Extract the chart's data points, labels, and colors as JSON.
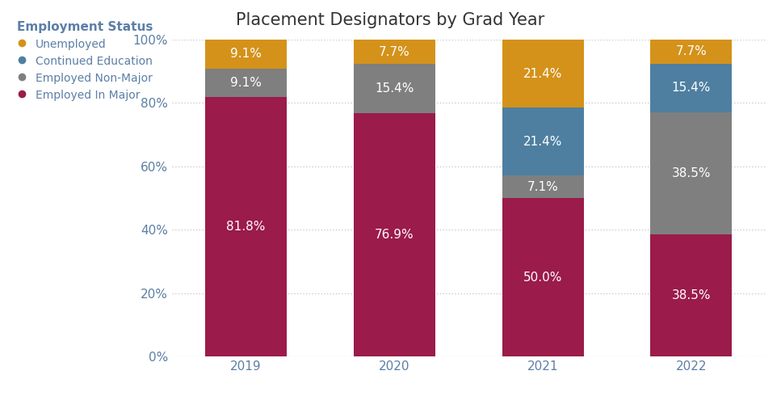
{
  "title": "Placement Designators by Grad Year",
  "years": [
    "2019",
    "2020",
    "2021",
    "2022"
  ],
  "categories": [
    "Employed In Major",
    "Employed Non-Major",
    "Continued Education",
    "Unemployed"
  ],
  "legend_title": "Employment Status",
  "colors": {
    "Employed In Major": "#9B1B4A",
    "Employed Non-Major": "#7F7F7F",
    "Continued Education": "#4E7FA0",
    "Unemployed": "#D4921A"
  },
  "data": {
    "Employed In Major": [
      81.8,
      76.9,
      50.0,
      38.5
    ],
    "Employed Non-Major": [
      9.1,
      15.4,
      7.1,
      38.5
    ],
    "Continued Education": [
      0.0,
      0.0,
      21.4,
      15.4
    ],
    "Unemployed": [
      9.1,
      7.7,
      21.4,
      7.7
    ]
  },
  "labels": {
    "Employed In Major": [
      "81.8%",
      "76.9%",
      "50.0%",
      "38.5%"
    ],
    "Employed Non-Major": [
      "9.1%",
      "15.4%",
      "7.1%",
      "38.5%"
    ],
    "Continued Education": [
      "",
      "",
      "21.4%",
      "15.4%"
    ],
    "Unemployed": [
      "9.1%",
      "7.7%",
      "21.4%",
      "7.7%"
    ]
  },
  "ylim": [
    0,
    100
  ],
  "ylabel_ticks": [
    0,
    20,
    40,
    60,
    80,
    100
  ],
  "background_color": "#FFFFFF",
  "grid_color": "#CCCCCC",
  "text_color": "#FFFFFF",
  "bar_width": 0.55,
  "title_fontsize": 15,
  "label_fontsize": 11,
  "tick_fontsize": 11,
  "legend_fontsize": 10,
  "legend_text_color": "#5B7FA6",
  "axis_text_color": "#5B7FA6",
  "title_color": "#333333"
}
